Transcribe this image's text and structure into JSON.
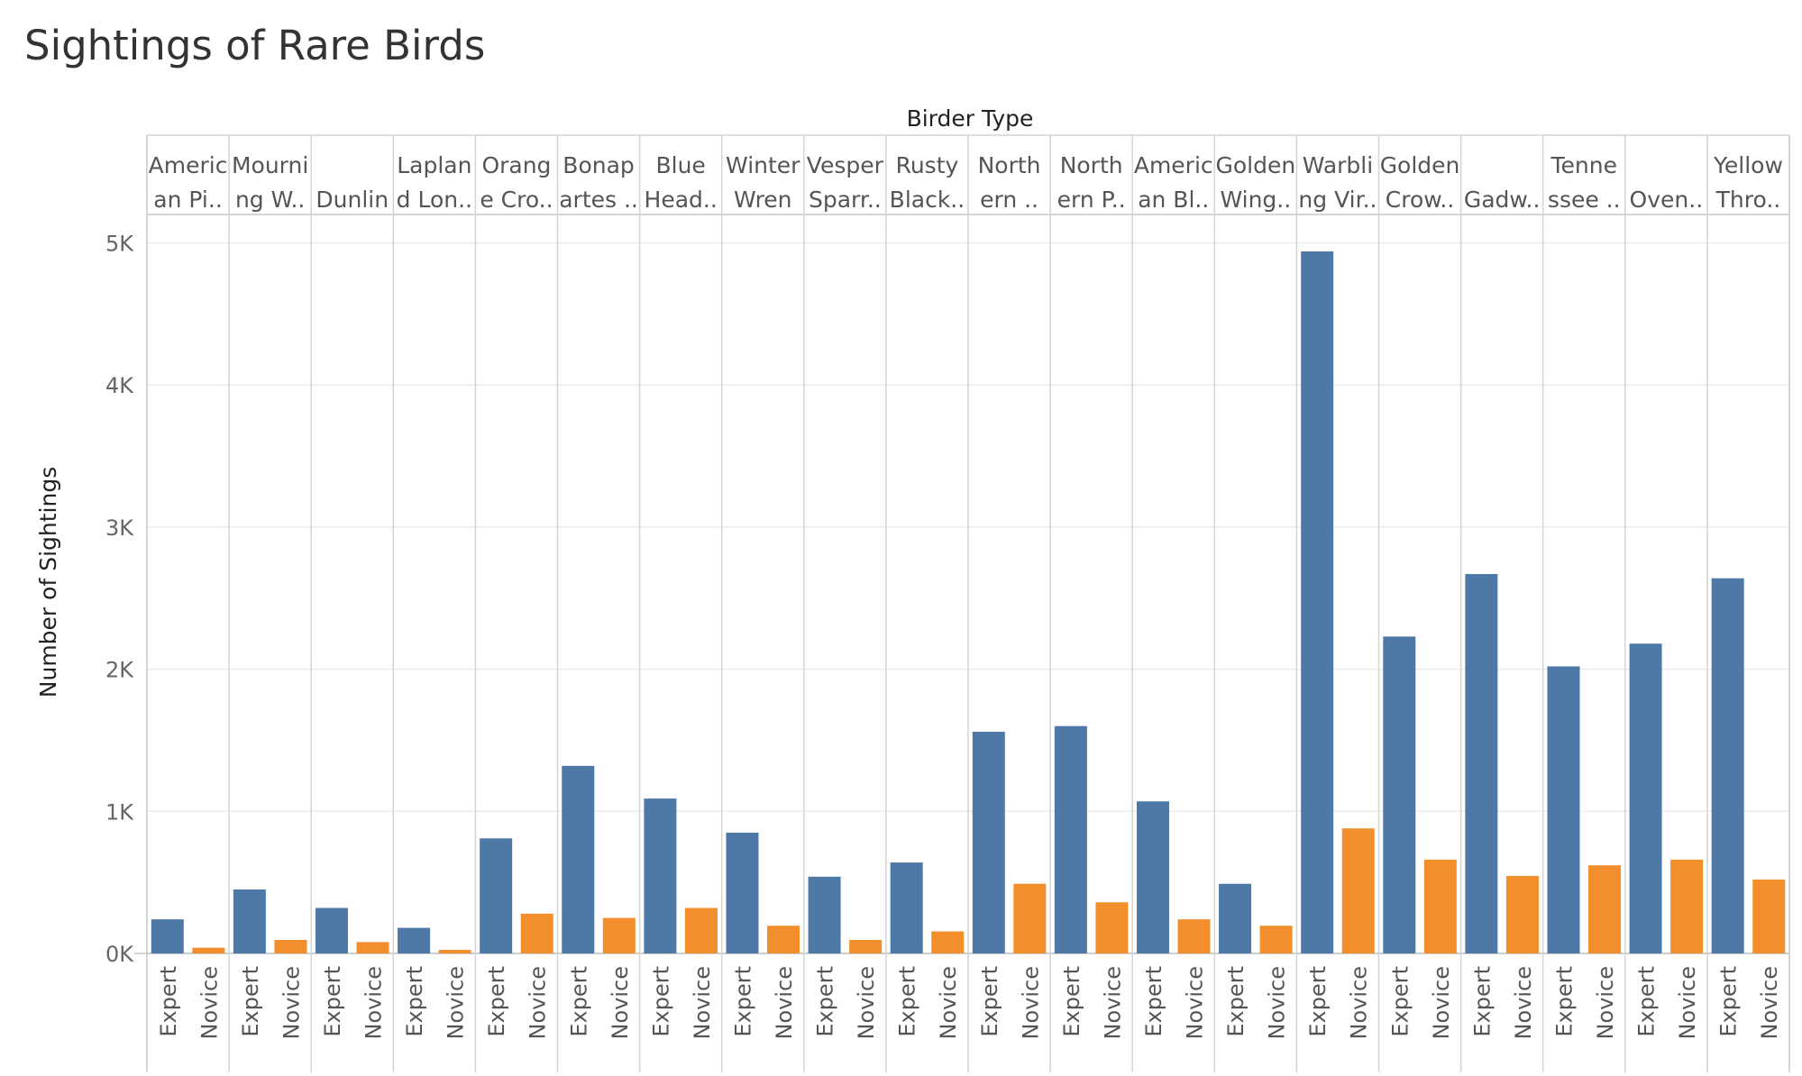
{
  "chart_data": {
    "type": "bar",
    "title": "Sightings of Rare Birds",
    "column_header": "Birder Type",
    "ylabel": "Number of Sightings",
    "ylim": [
      0,
      5200
    ],
    "yticks": [
      0,
      1000,
      2000,
      3000,
      4000,
      5000
    ],
    "ytick_labels": [
      "0K",
      "1K",
      "2K",
      "3K",
      "4K",
      "5K"
    ],
    "grid": true,
    "legend": "none",
    "series_colors": {
      "Expert": "#4e79a7",
      "Novice": "#f28e2b"
    },
    "groups": [
      {
        "label": [
          "Americ",
          "an Pi.."
        ],
        "bars": [
          {
            "birder_type": "Expert",
            "value": 240
          },
          {
            "birder_type": "Novice",
            "value": 40
          }
        ]
      },
      {
        "label": [
          "Mourni",
          "ng W.."
        ],
        "bars": [
          {
            "birder_type": "Expert",
            "value": 450
          },
          {
            "birder_type": "Novice",
            "value": 95
          }
        ]
      },
      {
        "label": [
          "",
          "Dunlin"
        ],
        "bars": [
          {
            "birder_type": "Expert",
            "value": 320
          },
          {
            "birder_type": "Novice",
            "value": 80
          }
        ]
      },
      {
        "label": [
          "Laplan",
          "d Lon.."
        ],
        "bars": [
          {
            "birder_type": "Expert",
            "value": 180
          },
          {
            "birder_type": "Novice",
            "value": 25
          }
        ]
      },
      {
        "label": [
          "Orang",
          "e Cro.."
        ],
        "bars": [
          {
            "birder_type": "Expert",
            "value": 810
          },
          {
            "birder_type": "Novice",
            "value": 280
          }
        ]
      },
      {
        "label": [
          "Bonap",
          "artes .."
        ],
        "bars": [
          {
            "birder_type": "Expert",
            "value": 1320
          },
          {
            "birder_type": "Novice",
            "value": 250
          }
        ]
      },
      {
        "label": [
          "Blue",
          "Head.."
        ],
        "bars": [
          {
            "birder_type": "Expert",
            "value": 1090
          },
          {
            "birder_type": "Novice",
            "value": 320
          }
        ]
      },
      {
        "label": [
          "Winter",
          "Wren"
        ],
        "bars": [
          {
            "birder_type": "Expert",
            "value": 850
          },
          {
            "birder_type": "Novice",
            "value": 195
          }
        ]
      },
      {
        "label": [
          "Vesper",
          "Sparr.."
        ],
        "bars": [
          {
            "birder_type": "Expert",
            "value": 540
          },
          {
            "birder_type": "Novice",
            "value": 95
          }
        ]
      },
      {
        "label": [
          "Rusty",
          "Black.."
        ],
        "bars": [
          {
            "birder_type": "Expert",
            "value": 640
          },
          {
            "birder_type": "Novice",
            "value": 155
          }
        ]
      },
      {
        "label": [
          "North",
          "ern .."
        ],
        "bars": [
          {
            "birder_type": "Expert",
            "value": 1560
          },
          {
            "birder_type": "Novice",
            "value": 490
          }
        ]
      },
      {
        "label": [
          "North",
          "ern P.."
        ],
        "bars": [
          {
            "birder_type": "Expert",
            "value": 1600
          },
          {
            "birder_type": "Novice",
            "value": 360
          }
        ]
      },
      {
        "label": [
          "Americ",
          "an Bl.."
        ],
        "bars": [
          {
            "birder_type": "Expert",
            "value": 1070
          },
          {
            "birder_type": "Novice",
            "value": 240
          }
        ]
      },
      {
        "label": [
          "Golden",
          "Wing.."
        ],
        "bars": [
          {
            "birder_type": "Expert",
            "value": 490
          },
          {
            "birder_type": "Novice",
            "value": 195
          }
        ]
      },
      {
        "label": [
          "Warbli",
          "ng Vir.."
        ],
        "bars": [
          {
            "birder_type": "Expert",
            "value": 4940
          },
          {
            "birder_type": "Novice",
            "value": 880
          }
        ]
      },
      {
        "label": [
          "Golden",
          "Crow.."
        ],
        "bars": [
          {
            "birder_type": "Expert",
            "value": 2230
          },
          {
            "birder_type": "Novice",
            "value": 660
          }
        ]
      },
      {
        "label": [
          "",
          "Gadw.."
        ],
        "bars": [
          {
            "birder_type": "Expert",
            "value": 2670
          },
          {
            "birder_type": "Novice",
            "value": 545
          }
        ]
      },
      {
        "label": [
          "Tenne",
          "ssee .."
        ],
        "bars": [
          {
            "birder_type": "Expert",
            "value": 2020
          },
          {
            "birder_type": "Novice",
            "value": 620
          }
        ]
      },
      {
        "label": [
          "",
          "Oven.."
        ],
        "bars": [
          {
            "birder_type": "Expert",
            "value": 2180
          },
          {
            "birder_type": "Novice",
            "value": 660
          }
        ]
      },
      {
        "label": [
          "Yellow",
          "Thro.."
        ],
        "bars": [
          {
            "birder_type": "Expert",
            "value": 2640
          },
          {
            "birder_type": "Novice",
            "value": 520
          }
        ]
      }
    ]
  }
}
